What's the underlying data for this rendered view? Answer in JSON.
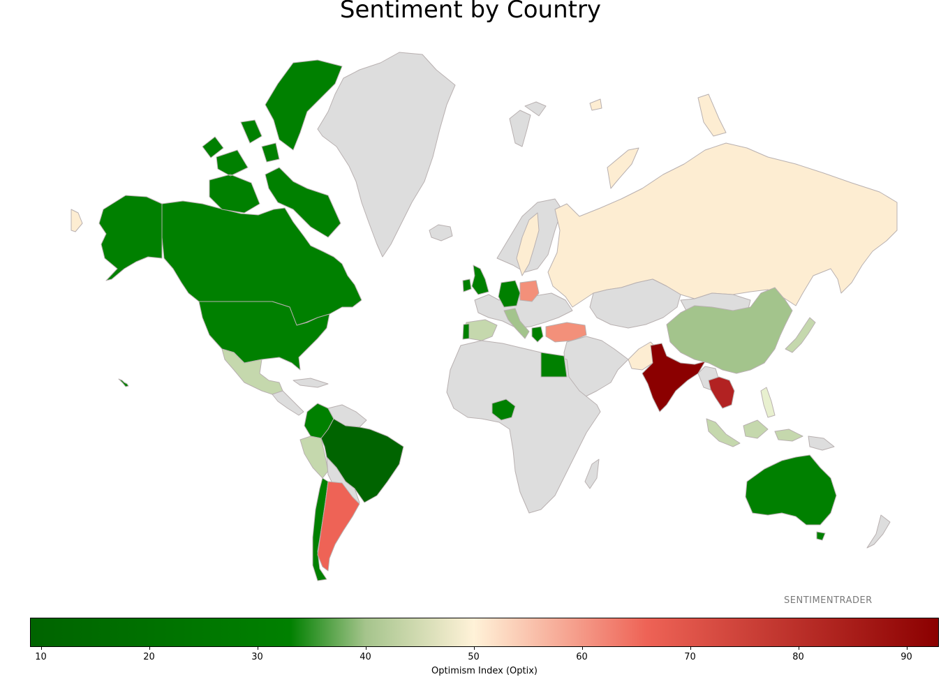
{
  "title": "Sentiment by Country",
  "watermark": "SENTIMENTRADER",
  "colorbar": {
    "label": "Optimism Index (Optix)",
    "min": 9,
    "max": 93,
    "ticks": [
      "10",
      "20",
      "30",
      "40",
      "50",
      "60",
      "70",
      "80",
      "90"
    ],
    "stops": [
      {
        "value": 9,
        "color": "#006400"
      },
      {
        "value": 33,
        "color": "#008000"
      },
      {
        "value": 40,
        "color": "#a5c48c"
      },
      {
        "value": 50,
        "color": "#fff2d8"
      },
      {
        "value": 66,
        "color": "#ee6356"
      },
      {
        "value": 93,
        "color": "#8b0000"
      }
    ]
  },
  "colors": {
    "no_data": "#dddddd",
    "border": "#b8b0b0",
    "dark_green": "#006400",
    "green": "#008000",
    "light_green": "#a3c48c",
    "pale_green": "#c5d8ad",
    "cream": "#fdedd2",
    "salmon": "#f3907a",
    "red": "#ee6356",
    "firebrick": "#b22222",
    "dark_red": "#8b0000"
  }
}
